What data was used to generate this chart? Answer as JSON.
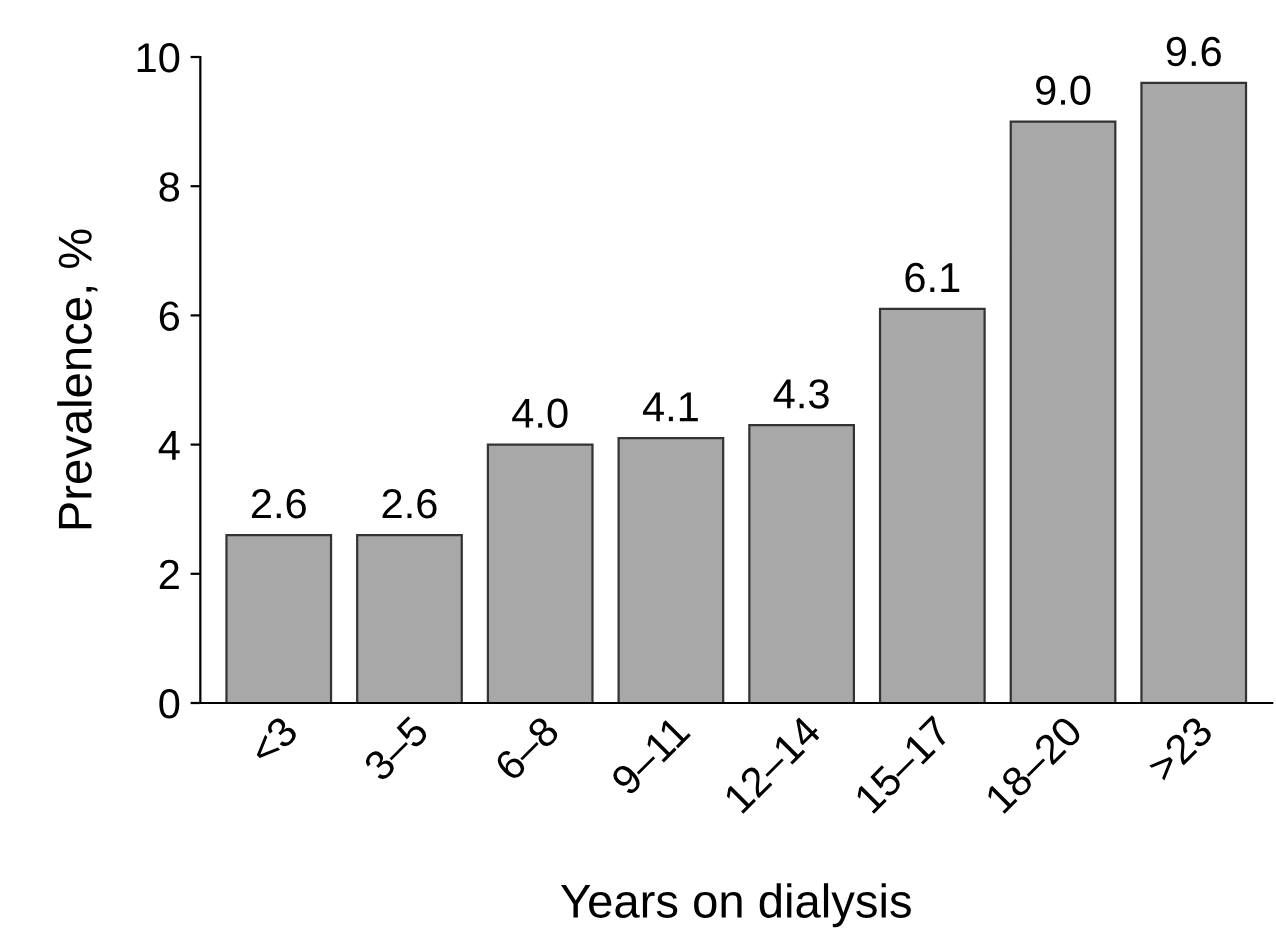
{
  "chart_data": {
    "type": "bar",
    "xlabel": "Years on dialysis",
    "ylabel": "Prevalence, %",
    "categories": [
      "<3",
      "3–5",
      "6–8",
      "9–11",
      "12–14",
      "15–17",
      "18–20",
      ">23"
    ],
    "values": [
      2.6,
      2.6,
      4.0,
      4.1,
      4.3,
      6.1,
      9.0,
      9.6
    ],
    "value_labels": [
      "2.6",
      "2.6",
      "4.0",
      "4.1",
      "4.3",
      "6.1",
      "9.0",
      "9.6"
    ],
    "color": "#a8a8a8",
    "ylim": [
      0,
      10
    ],
    "yticks": [
      0,
      2,
      4,
      6,
      8,
      10
    ],
    "grid": false,
    "legend": false
  }
}
